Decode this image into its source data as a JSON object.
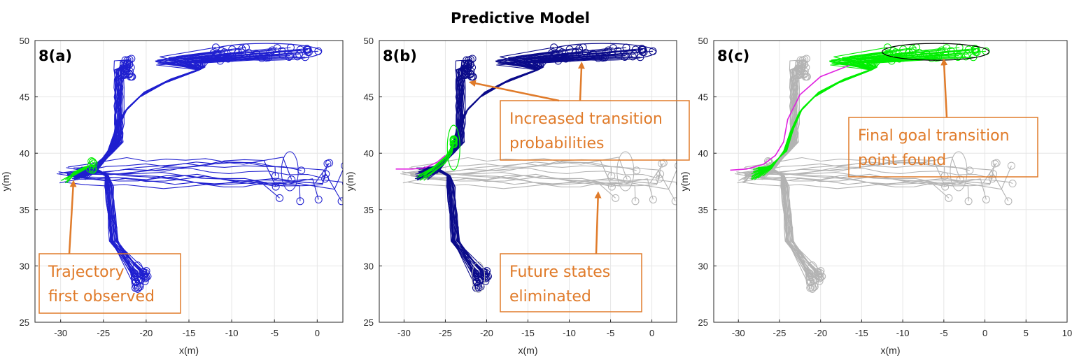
{
  "title": "Predictive Model",
  "colors": {
    "blue": "#1f1fcf",
    "navy": "#0b0b8a",
    "green": "#00ee00",
    "gray": "#b3b3b3",
    "magenta": "#e020e0",
    "annotation": "#e07b2a",
    "grid": "#e6e6e6",
    "axis": "#262626",
    "black": "#000000"
  },
  "chart_data": [
    {
      "type": "line",
      "panel_label": "8(a)",
      "xlabel": "x(m)",
      "ylabel": "y(m)",
      "xlim": [
        -33,
        3
      ],
      "ylim": [
        25,
        50
      ],
      "xticks": [
        -30,
        -25,
        -20,
        -15,
        -10,
        -5,
        0
      ],
      "yticks": [
        25,
        30,
        35,
        40,
        45,
        50
      ],
      "grid": true,
      "groups": {
        "north": "blue",
        "northeast": "blue",
        "east": "blue",
        "south": "blue",
        "observed": "green"
      },
      "highlight_ellipse": false,
      "observed_track": false,
      "annotations": [
        {
          "lines": [
            "Trajectory",
            "first observed"
          ],
          "arrow_to": [
            -28.5,
            37.5
          ]
        }
      ]
    },
    {
      "type": "line",
      "panel_label": "8(b)",
      "xlabel": "x(m)",
      "ylabel": "y(m)",
      "xlim": [
        -33,
        3
      ],
      "ylim": [
        25,
        50
      ],
      "xticks": [
        -30,
        -25,
        -20,
        -15,
        -10,
        -5,
        0
      ],
      "yticks": [
        25,
        30,
        35,
        40,
        45,
        50
      ],
      "grid": true,
      "groups": {
        "north": "navy",
        "northeast": "navy",
        "east": "gray",
        "south": "navy",
        "observed": "green"
      },
      "highlight_ellipse": false,
      "observed_track": true,
      "annotations": [
        {
          "lines": [
            "Increased transition",
            "probabilities"
          ],
          "arrow_to": [
            -22,
            46.3
          ],
          "arrow_to_2": [
            -8.5,
            48
          ]
        },
        {
          "lines": [
            "Future states",
            "eliminated"
          ],
          "arrow_to": [
            -6.5,
            36.5
          ]
        }
      ]
    },
    {
      "type": "line",
      "panel_label": "8(c)",
      "xlabel": "x(m)",
      "ylabel": "y(m)",
      "xlim": [
        -33,
        10
      ],
      "ylim": [
        25,
        50
      ],
      "xticks": [
        -30,
        -25,
        -20,
        -15,
        -10,
        -5,
        0,
        5,
        10
      ],
      "yticks": [
        25,
        30,
        35,
        40,
        45,
        50
      ],
      "grid": true,
      "groups": {
        "north": "gray",
        "northeast": "green",
        "east": "gray",
        "south": "gray",
        "observed": "gray"
      },
      "highlight_ellipse": true,
      "observed_track": true,
      "annotations": [
        {
          "lines": [
            "Final goal transition",
            "point found"
          ],
          "arrow_to": [
            -5,
            48.3
          ]
        }
      ]
    }
  ]
}
